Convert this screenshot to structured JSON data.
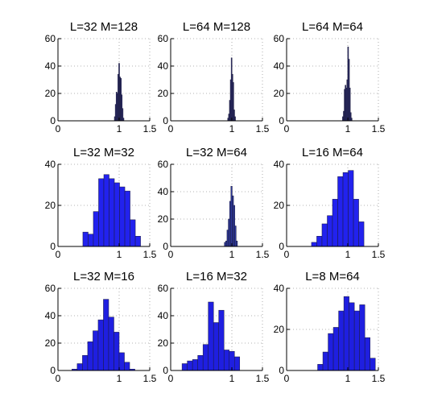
{
  "chart_data": [
    {
      "type": "bar",
      "title": "L=32 M=128",
      "xlim": [
        0,
        1.5
      ],
      "ylim": [
        0,
        60
      ],
      "xticks": [
        "0",
        "1",
        "1.5"
      ],
      "yticks": [
        "0",
        "20",
        "40",
        "60"
      ],
      "grid": true,
      "bars": [
        {
          "x": 0.9286,
          "v": 3
        },
        {
          "x": 0.9429,
          "v": 12
        },
        {
          "x": 0.9571,
          "v": 21
        },
        {
          "x": 0.9714,
          "v": 20
        },
        {
          "x": 0.9857,
          "v": 34
        },
        {
          "x": 1.0,
          "v": 42
        },
        {
          "x": 1.0143,
          "v": 32
        },
        {
          "x": 1.0286,
          "v": 31
        },
        {
          "x": 1.0429,
          "v": 19
        },
        {
          "x": 1.0571,
          "v": 9
        },
        {
          "x": 1.0714,
          "v": 2
        }
      ]
    },
    {
      "type": "bar",
      "title": "L=64 M=128",
      "xlim": [
        0,
        1.5
      ],
      "ylim": [
        0,
        60
      ],
      "xticks": [
        "0",
        "1",
        "1.5"
      ],
      "yticks": [
        "0",
        "20",
        "40",
        "60"
      ],
      "grid": true,
      "bars": [
        {
          "x": 0.9386,
          "v": 2
        },
        {
          "x": 0.9529,
          "v": 5
        },
        {
          "x": 0.9671,
          "v": 15
        },
        {
          "x": 0.9814,
          "v": 30
        },
        {
          "x": 0.9957,
          "v": 46
        },
        {
          "x": 1.01,
          "v": 34
        },
        {
          "x": 1.0243,
          "v": 28
        },
        {
          "x": 1.0386,
          "v": 8
        },
        {
          "x": 1.0529,
          "v": 3
        }
      ]
    },
    {
      "type": "bar",
      "title": "L=64 M=64",
      "xlim": [
        0,
        1.5
      ],
      "ylim": [
        0,
        60
      ],
      "xticks": [
        "0",
        "1",
        "1.5"
      ],
      "yticks": [
        "0",
        "20",
        "40",
        "60"
      ],
      "grid": true,
      "bars": [
        {
          "x": 0.92,
          "v": 3
        },
        {
          "x": 0.9343,
          "v": 7
        },
        {
          "x": 0.9486,
          "v": 23
        },
        {
          "x": 0.9629,
          "v": 26
        },
        {
          "x": 0.9771,
          "v": 24
        },
        {
          "x": 0.9914,
          "v": 30
        },
        {
          "x": 1.0057,
          "v": 54
        },
        {
          "x": 1.02,
          "v": 45
        },
        {
          "x": 1.0343,
          "v": 24
        },
        {
          "x": 1.0486,
          "v": 6
        },
        {
          "x": 1.0629,
          "v": 2
        }
      ]
    },
    {
      "type": "bar",
      "title": "L=32 M=32",
      "xlim": [
        0,
        1.5
      ],
      "ylim": [
        0,
        40
      ],
      "xticks": [
        "0",
        "1",
        "1.5"
      ],
      "yticks": [
        "0",
        "20",
        "40"
      ],
      "grid": true,
      "bars": [
        {
          "x": 0.45,
          "v": 7
        },
        {
          "x": 0.5357,
          "v": 6
        },
        {
          "x": 0.6214,
          "v": 17
        },
        {
          "x": 0.7071,
          "v": 33
        },
        {
          "x": 0.7929,
          "v": 35
        },
        {
          "x": 0.8786,
          "v": 33
        },
        {
          "x": 0.9643,
          "v": 31
        },
        {
          "x": 1.05,
          "v": 29
        },
        {
          "x": 1.1357,
          "v": 27
        },
        {
          "x": 1.2214,
          "v": 13
        },
        {
          "x": 1.3071,
          "v": 5
        }
      ]
    },
    {
      "type": "bar",
      "title": "L=32 M=64",
      "xlim": [
        0,
        1.5
      ],
      "ylim": [
        0,
        60
      ],
      "xticks": [
        "0",
        "1",
        "1.5"
      ],
      "yticks": [
        "0",
        "20",
        "40",
        "60"
      ],
      "grid": true,
      "bars": [
        {
          "x": 0.8879,
          "v": 3
        },
        {
          "x": 0.9093,
          "v": 4
        },
        {
          "x": 0.9307,
          "v": 12
        },
        {
          "x": 0.9521,
          "v": 20
        },
        {
          "x": 0.9736,
          "v": 33
        },
        {
          "x": 0.995,
          "v": 44
        },
        {
          "x": 1.0164,
          "v": 37
        },
        {
          "x": 1.0379,
          "v": 30
        },
        {
          "x": 1.0593,
          "v": 15
        },
        {
          "x": 1.0807,
          "v": 4
        }
      ]
    },
    {
      "type": "bar",
      "title": "L=16 M=64",
      "xlim": [
        0,
        1.5
      ],
      "ylim": [
        0,
        40
      ],
      "xticks": [
        "0",
        "1",
        "1.5"
      ],
      "yticks": [
        "0",
        "20",
        "40"
      ],
      "grid": true,
      "bars": [
        {
          "x": 0.45,
          "v": 2
        },
        {
          "x": 0.5357,
          "v": 5
        },
        {
          "x": 0.6214,
          "v": 11
        },
        {
          "x": 0.7071,
          "v": 15
        },
        {
          "x": 0.7929,
          "v": 23
        },
        {
          "x": 0.8786,
          "v": 34
        },
        {
          "x": 0.9643,
          "v": 36
        },
        {
          "x": 1.05,
          "v": 37
        },
        {
          "x": 1.1357,
          "v": 23
        },
        {
          "x": 1.2214,
          "v": 12
        }
      ]
    },
    {
      "type": "bar",
      "title": "L=32 M=16",
      "xlim": [
        0,
        1.5
      ],
      "ylim": [
        0,
        60
      ],
      "xticks": [
        "0",
        "1",
        "1.5"
      ],
      "yticks": [
        "0",
        "20",
        "40",
        "60"
      ],
      "grid": true,
      "bars": [
        {
          "x": 0.2714,
          "v": 1
        },
        {
          "x": 0.3571,
          "v": 5
        },
        {
          "x": 0.4429,
          "v": 11
        },
        {
          "x": 0.5286,
          "v": 21
        },
        {
          "x": 0.6143,
          "v": 29
        },
        {
          "x": 0.7,
          "v": 37
        },
        {
          "x": 0.7857,
          "v": 52
        },
        {
          "x": 0.8714,
          "v": 39
        },
        {
          "x": 0.9571,
          "v": 28
        },
        {
          "x": 1.0429,
          "v": 13
        },
        {
          "x": 1.1286,
          "v": 6
        },
        {
          "x": 1.2143,
          "v": 1
        }
      ]
    },
    {
      "type": "bar",
      "title": "L=16 M=32",
      "xlim": [
        0,
        1.5
      ],
      "ylim": [
        0,
        60
      ],
      "xticks": [
        "0",
        "1",
        "1.5"
      ],
      "yticks": [
        "0",
        "20",
        "40",
        "60"
      ],
      "grid": true,
      "bars": [
        {
          "x": 0.2286,
          "v": 5
        },
        {
          "x": 0.3143,
          "v": 7
        },
        {
          "x": 0.4,
          "v": 8
        },
        {
          "x": 0.4857,
          "v": 11
        },
        {
          "x": 0.5714,
          "v": 19
        },
        {
          "x": 0.6571,
          "v": 50
        },
        {
          "x": 0.7429,
          "v": 35
        },
        {
          "x": 0.8286,
          "v": 44
        },
        {
          "x": 0.9143,
          "v": 15
        },
        {
          "x": 1.0,
          "v": 14
        },
        {
          "x": 1.0857,
          "v": 10
        }
      ]
    },
    {
      "type": "bar",
      "title": "L=8 M=64",
      "xlim": [
        0,
        1.5
      ],
      "ylim": [
        0,
        40
      ],
      "xticks": [
        "0",
        "1",
        "1.5"
      ],
      "yticks": [
        "0",
        "20",
        "40"
      ],
      "grid": true,
      "bars": [
        {
          "x": 0.55,
          "v": 3
        },
        {
          "x": 0.6357,
          "v": 9
        },
        {
          "x": 0.7214,
          "v": 18
        },
        {
          "x": 0.8071,
          "v": 21
        },
        {
          "x": 0.8929,
          "v": 29
        },
        {
          "x": 0.9786,
          "v": 36
        },
        {
          "x": 1.0643,
          "v": 33
        },
        {
          "x": 1.15,
          "v": 29
        },
        {
          "x": 1.2357,
          "v": 32
        },
        {
          "x": 1.3214,
          "v": 16
        },
        {
          "x": 1.4071,
          "v": 6
        }
      ]
    }
  ],
  "colors": {
    "row1": "#2e2e6e",
    "row2_left": "#2222ee",
    "row2_mid": "#2f3aa0",
    "row2_right": "#2222ee",
    "row3": "#1f1fe0"
  }
}
